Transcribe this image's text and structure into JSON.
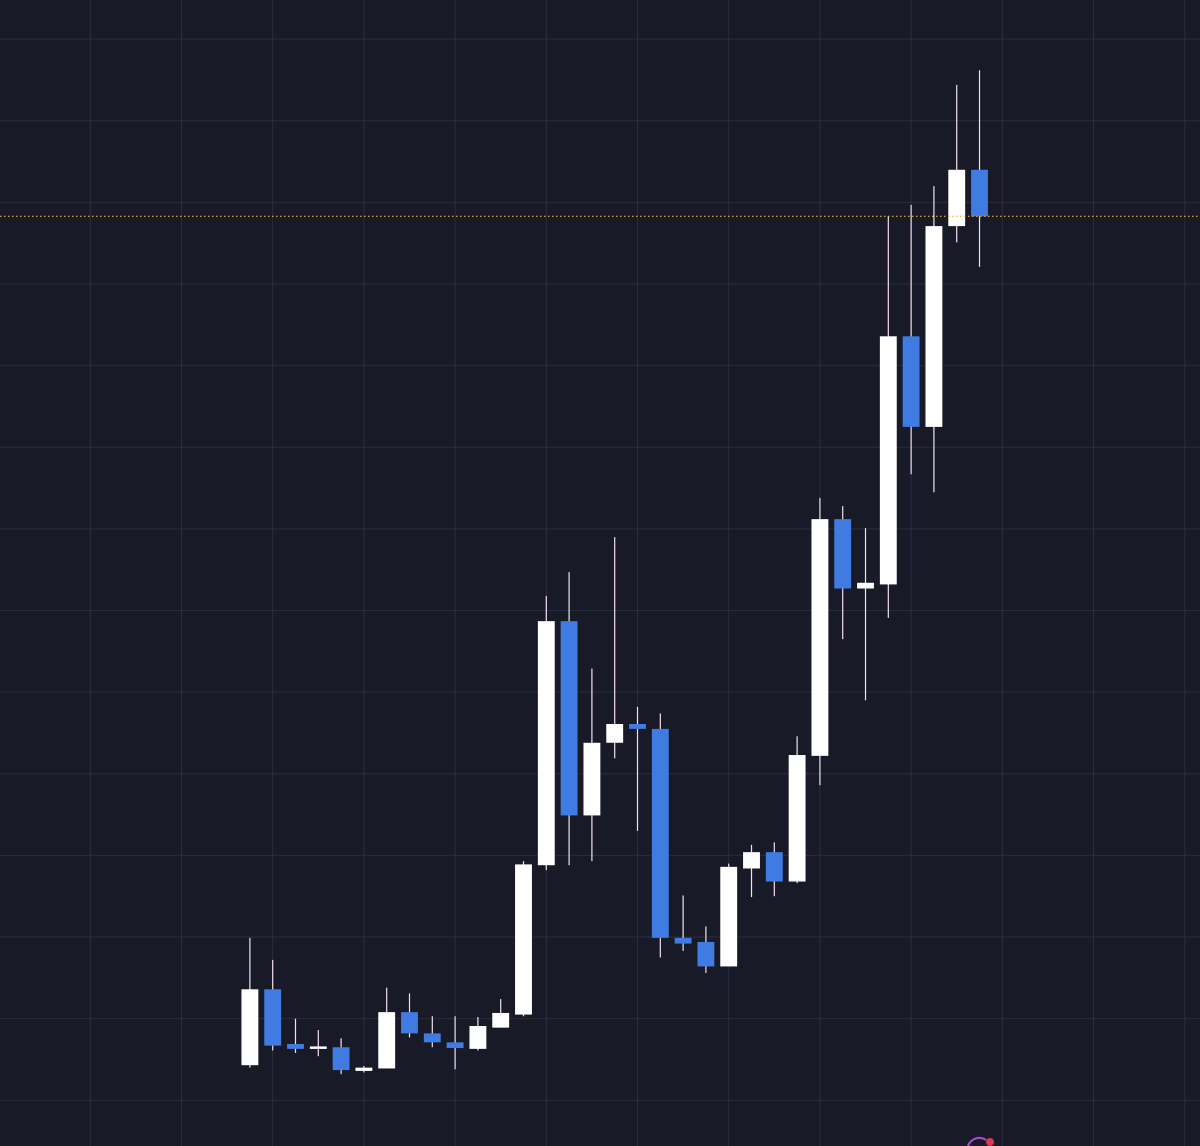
{
  "chart_data": {
    "type": "candlestick",
    "x": [
      1,
      2,
      3,
      4,
      5,
      6,
      7,
      8,
      9,
      10,
      11,
      12,
      13,
      14,
      15,
      16,
      17,
      18,
      19,
      20,
      21,
      22,
      23,
      24,
      25,
      26,
      27,
      28,
      29,
      30,
      31,
      32,
      33
    ],
    "open": [
      4.3,
      13.6,
      6.9,
      6.3,
      6.5,
      3.6,
      3.9,
      10.8,
      8.2,
      7.1,
      6.3,
      8.9,
      10.5,
      28.8,
      58.7,
      34.9,
      43.8,
      46.1,
      45.5,
      19.9,
      19.4,
      16.4,
      28.4,
      30.4,
      26.8,
      42.2,
      71.2,
      62.7,
      63.2,
      93.6,
      82.5,
      107.1,
      114.0
    ],
    "high": [
      19.9,
      17.2,
      10.0,
      8.6,
      7.6,
      4.2,
      13.8,
      13.1,
      10.3,
      10.3,
      10.2,
      12.4,
      29.3,
      61.8,
      64.7,
      52.9,
      69.0,
      48.2,
      47.4,
      25.1,
      21.3,
      29.0,
      31.3,
      31.6,
      44.6,
      73.8,
      72.8,
      70.1,
      108.3,
      109.7,
      112.0,
      124.4,
      126.2
    ],
    "low": [
      4.0,
      6.1,
      5.8,
      5.4,
      3.2,
      3.4,
      3.9,
      7.7,
      6.5,
      3.8,
      6.1,
      8.9,
      10.3,
      28.2,
      28.8,
      29.3,
      41.9,
      33.0,
      17.5,
      18.3,
      15.6,
      16.4,
      24.9,
      25.0,
      26.6,
      38.6,
      56.5,
      49.0,
      59.1,
      76.7,
      74.5,
      105.1,
      102.1
    ],
    "close": [
      13.6,
      6.7,
      6.3,
      6.6,
      3.7,
      4.0,
      10.8,
      8.2,
      7.1,
      6.4,
      9.1,
      10.7,
      28.9,
      58.7,
      34.9,
      43.8,
      46.1,
      45.5,
      19.9,
      19.2,
      16.4,
      28.6,
      30.4,
      26.8,
      42.3,
      71.2,
      62.7,
      63.4,
      93.6,
      82.5,
      107.1,
      114.0,
      108.3
    ],
    "up_color": "#ffffff",
    "down_color": "#3f7be0",
    "wick_color": "#f3dff0",
    "last_price_color": "#e8b04a",
    "xlim": [
      -9.96,
      42.67
    ],
    "xticks": [
      -6,
      -2,
      2,
      6,
      10,
      14,
      18,
      22,
      26,
      30,
      34,
      38,
      42
    ],
    "ylim": [
      -5.6,
      134.8
    ],
    "yticks": [
      0,
      10,
      20,
      30,
      40,
      50,
      60,
      70,
      80,
      90,
      100,
      110,
      120,
      130
    ],
    "grid": true,
    "last_price_line": true
  }
}
